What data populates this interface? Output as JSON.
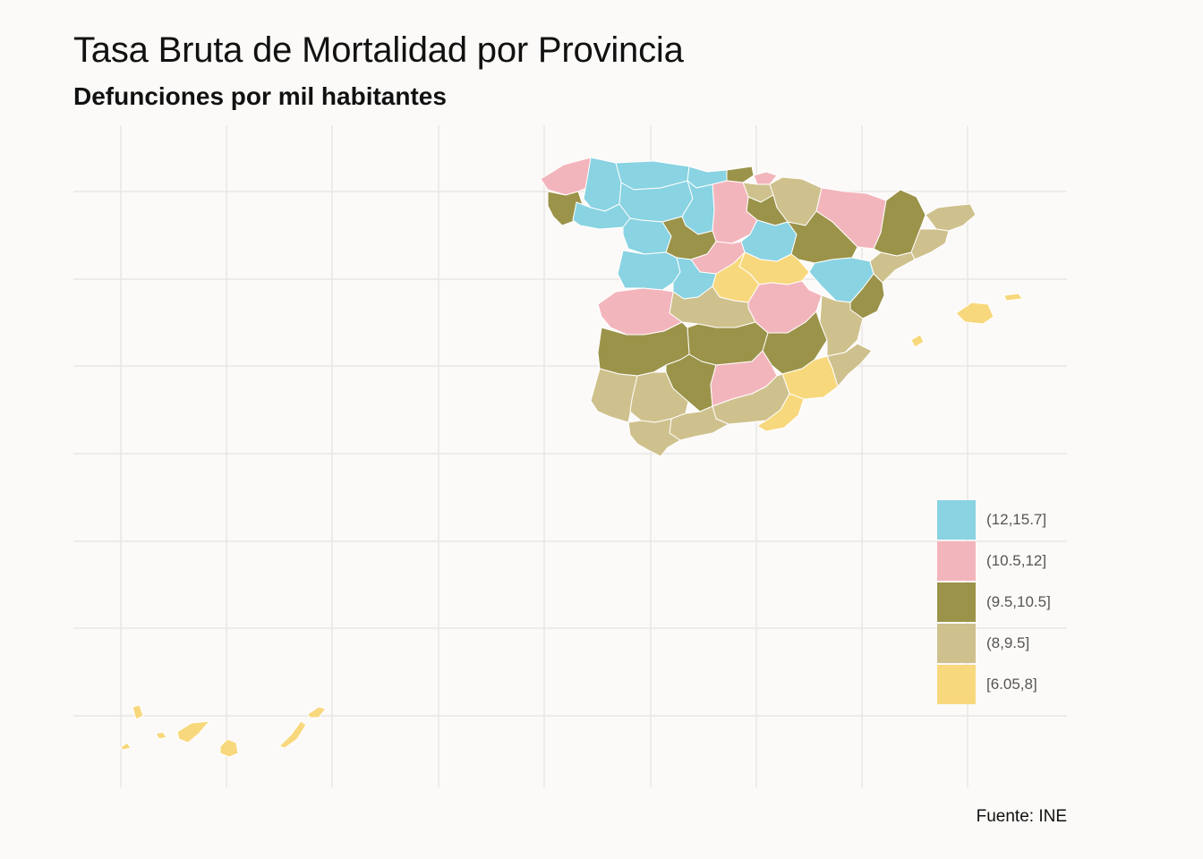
{
  "title": "Tasa Bruta de Mortalidad por Provincia",
  "subtitle": "Defunciones por mil habitantes",
  "caption": "Fuente: INE",
  "legend": [
    {
      "label": "(12,15.7]",
      "color": "#89d3e2"
    },
    {
      "label": "(10.5,12]",
      "color": "#f3b5bc"
    },
    {
      "label": "(9.5,10.5]",
      "color": "#9b9349"
    },
    {
      "label": "(8,9.5]",
      "color": "#cfc18d"
    },
    {
      "label": "[6.05,8]",
      "color": "#f8d87d"
    }
  ],
  "colors": {
    "background": "#fcfaf8",
    "grid": "#e9e7e4",
    "border": "#ffffff"
  }
}
